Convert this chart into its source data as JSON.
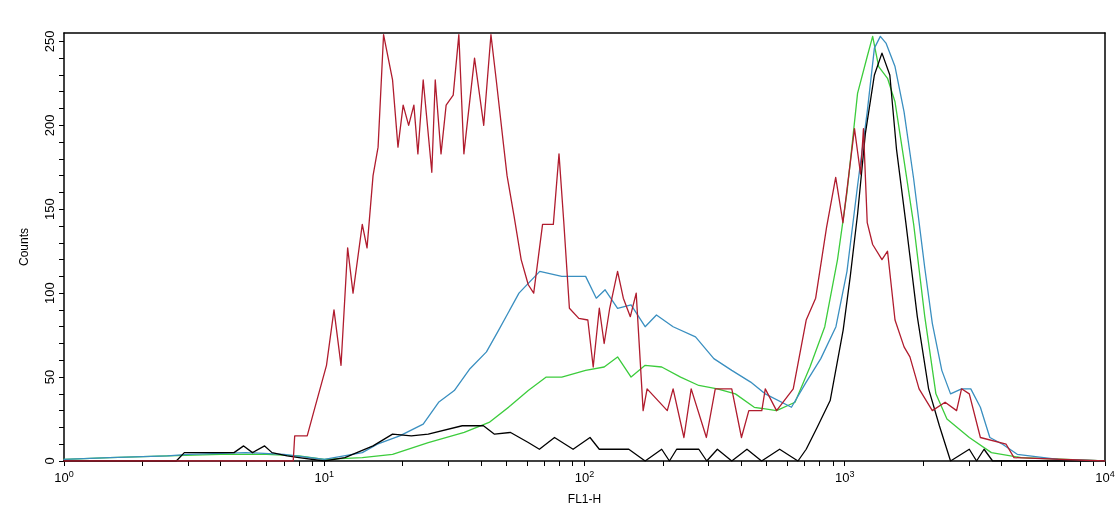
{
  "chart_data": {
    "type": "line",
    "xlabel": "FL1-H",
    "ylabel": "Counts",
    "log": "x",
    "marker": "none",
    "line_style": "solid",
    "grid": false,
    "xlim": [
      1,
      10000
    ],
    "ylim": [
      0,
      255
    ],
    "xticks": [
      {
        "value": 1,
        "label": "10$^{0}$"
      },
      {
        "value": 2,
        "label": null
      },
      {
        "value": 3,
        "label": null
      },
      {
        "value": 4,
        "label": null
      },
      {
        "value": 5,
        "label": null
      },
      {
        "value": 6,
        "label": null
      },
      {
        "value": 7,
        "label": null
      },
      {
        "value": 8,
        "label": null
      },
      {
        "value": 9,
        "label": null
      },
      {
        "value": 10,
        "label": "10$^{1}$"
      },
      {
        "value": 20,
        "label": null
      },
      {
        "value": 30,
        "label": null
      },
      {
        "value": 40,
        "label": null
      },
      {
        "value": 50,
        "label": null
      },
      {
        "value": 60,
        "label": null
      },
      {
        "value": 70,
        "label": null
      },
      {
        "value": 80,
        "label": null
      },
      {
        "value": 90,
        "label": null
      },
      {
        "value": 100,
        "label": "10$^{2}$"
      },
      {
        "value": 200,
        "label": null
      },
      {
        "value": 300,
        "label": null
      },
      {
        "value": 400,
        "label": null
      },
      {
        "value": 500,
        "label": null
      },
      {
        "value": 600,
        "label": null
      },
      {
        "value": 700,
        "label": null
      },
      {
        "value": 800,
        "label": null
      },
      {
        "value": 900,
        "label": null
      },
      {
        "value": 1000,
        "label": "10$^{3}$"
      },
      {
        "value": 2000,
        "label": null
      },
      {
        "value": 3000,
        "label": null
      },
      {
        "value": 4000,
        "label": null
      },
      {
        "value": 5000,
        "label": null
      },
      {
        "value": 6000,
        "label": null
      },
      {
        "value": 7000,
        "label": null
      },
      {
        "value": 8000,
        "label": null
      },
      {
        "value": 9000,
        "label": null
      },
      {
        "value": 10000,
        "label": "10$^{4}$"
      }
    ],
    "yticks": [
      0,
      {
        "value": 10,
        "label": null
      },
      {
        "value": 20,
        "label": null
      },
      {
        "value": 30,
        "label": null
      },
      {
        "value": 40,
        "label": null
      },
      50,
      {
        "value": 60,
        "label": null
      },
      {
        "value": 70,
        "label": null
      },
      {
        "value": 80,
        "label": null
      },
      {
        "value": 90,
        "label": null
      },
      100,
      {
        "value": 110,
        "label": null
      },
      {
        "value": 120,
        "label": null
      },
      {
        "value": 130,
        "label": null
      },
      {
        "value": 140,
        "label": null
      },
      150,
      {
        "value": 160,
        "label": null
      },
      {
        "value": 170,
        "label": null
      },
      {
        "value": 180,
        "label": null
      },
      {
        "value": 190,
        "label": null
      },
      200,
      {
        "value": 210,
        "label": null
      },
      {
        "value": 220,
        "label": null
      },
      {
        "value": 230,
        "label": null
      },
      {
        "value": 240,
        "label": null
      },
      250
    ],
    "series": [
      {
        "color": "#3ccc3c",
        "x": [
          1,
          1.5,
          2.5,
          4,
          6,
          8,
          10,
          14,
          18.3,
          25.1,
          34.5,
          43,
          52,
          60.8,
          71.3,
          81.8,
          101,
          119,
          134,
          151,
          171,
          198,
          234,
          275,
          324,
          380,
          449,
          547,
          644,
          735,
          838,
          938,
          1020,
          1120,
          1220,
          1280,
          1350,
          1460,
          1560,
          1690,
          1840,
          2030,
          2240,
          2470,
          3010,
          3660,
          4760,
          10000
        ],
        "values": [
          1,
          2,
          3,
          4,
          4,
          3,
          1,
          2,
          4,
          11,
          17,
          23,
          33,
          42,
          50,
          50,
          54,
          56,
          62,
          50,
          57,
          56,
          50,
          45,
          43,
          40,
          32,
          30,
          35,
          56,
          80,
          120,
          160,
          219,
          241,
          253,
          235,
          228,
          214,
          179,
          141,
          86,
          40,
          25,
          14,
          5,
          2,
          0
        ]
      },
      {
        "color": "#3a8fc0",
        "x": [
          1,
          1.5,
          2.5,
          3,
          5,
          7,
          10,
          14,
          16,
          19.5,
          24,
          27.5,
          31.6,
          36.3,
          42,
          46.8,
          56,
          67.3,
          81.8,
          101,
          111,
          120,
          134,
          151,
          171,
          189,
          219,
          267,
          314,
          368,
          435,
          495,
          624,
          711,
          809,
          925,
          1020,
          1120,
          1220,
          1300,
          1370,
          1440,
          1560,
          1690,
          1840,
          2030,
          2170,
          2360,
          2550,
          2810,
          3050,
          3320,
          3610,
          4040,
          4600,
          6610,
          10000
        ],
        "values": [
          1,
          2,
          3,
          4,
          5,
          4,
          1,
          5,
          10,
          15,
          22,
          35,
          42,
          55,
          65,
          78,
          100,
          113,
          110,
          110,
          97,
          102,
          91,
          93,
          80,
          87,
          80,
          74,
          61,
          54,
          47,
          40,
          32,
          47,
          61,
          80,
          113,
          164,
          208,
          246,
          253,
          249,
          235,
          208,
          168,
          115,
          82,
          54,
          40,
          43,
          43,
          32,
          14,
          10,
          4,
          1,
          0
        ]
      },
      {
        "color": "#000000",
        "x": [
          1,
          2.7,
          2.9,
          4.5,
          4.9,
          5.3,
          5.9,
          6.3,
          7.2,
          8,
          10,
          12,
          15.4,
          18.3,
          21.6,
          25.1,
          33.9,
          40.9,
          45.1,
          52,
          60.8,
          67.1,
          76.7,
          90.4,
          105,
          114,
          148,
          171,
          198,
          212,
          226,
          275,
          295,
          324,
          368,
          421,
          479,
          562,
          661,
          711,
          783,
          879,
          986,
          1050,
          1120,
          1200,
          1300,
          1390,
          1490,
          1580,
          1720,
          1900,
          2100,
          2310,
          2550,
          3010,
          3210,
          3430,
          3700,
          10000
        ],
        "values": [
          0,
          0,
          5,
          5,
          9,
          5,
          9,
          5,
          3,
          2,
          0,
          2,
          9,
          16,
          15,
          16,
          21,
          21,
          16,
          17,
          11,
          7,
          14,
          7,
          14,
          7,
          7,
          0,
          7,
          0,
          7,
          7,
          0,
          7,
          0,
          7,
          0,
          7,
          0,
          7,
          20,
          36,
          78,
          110,
          147,
          195,
          230,
          243,
          230,
          186,
          141,
          86,
          43,
          21,
          0,
          7,
          0,
          7,
          0,
          0
        ]
      },
      {
        "color": "#b01c2e",
        "x": [
          1,
          7.6,
          7.7,
          8.6,
          9.1,
          10.2,
          10.9,
          11.6,
          12.3,
          12.9,
          14,
          14.6,
          15.4,
          16.1,
          16.9,
          18.3,
          19.2,
          20.1,
          21.1,
          22.1,
          22.9,
          24,
          25.9,
          26.7,
          28.1,
          29.4,
          31.3,
          32.9,
          34.4,
          35.6,
          37.8,
          41,
          43.7,
          45.8,
          48.8,
          50.4,
          53.6,
          57.1,
          60.8,
          63.8,
          69,
          75.9,
          79.8,
          83.2,
          87.5,
          95.1,
          103,
          108,
          114,
          119,
          125,
          134,
          141,
          150,
          158,
          168,
          174,
          208,
          219,
          241,
          257,
          294,
          318,
          368,
          401,
          428,
          480,
          495,
          547,
          634,
          711,
          773,
          851,
          923,
          984,
          1090,
          1150,
          1180,
          1220,
          1280,
          1390,
          1460,
          1560,
          1690,
          1780,
          1930,
          2170,
          2430,
          2690,
          2810,
          3010,
          3320,
          4170,
          4470,
          10000
        ],
        "values": [
          0,
          0,
          15,
          15,
          29,
          57,
          90,
          57,
          127,
          100,
          141,
          127,
          170,
          187,
          254,
          227,
          187,
          212,
          200,
          212,
          183,
          227,
          172,
          227,
          183,
          212,
          218,
          254,
          183,
          204,
          240,
          200,
          254,
          227,
          189,
          170,
          146,
          120,
          105,
          100,
          141,
          141,
          183,
          143,
          91,
          85,
          84,
          56,
          91,
          70,
          91,
          113,
          97,
          86,
          100,
          30,
          43,
          30,
          43,
          14,
          43,
          14,
          43,
          43,
          14,
          30,
          30,
          43,
          30,
          43,
          84,
          97,
          139,
          169,
          142,
          198,
          171,
          198,
          142,
          129,
          120,
          125,
          84,
          68,
          62,
          43,
          30,
          35,
          30,
          43,
          40,
          14,
          10,
          2,
          0
        ]
      }
    ]
  }
}
